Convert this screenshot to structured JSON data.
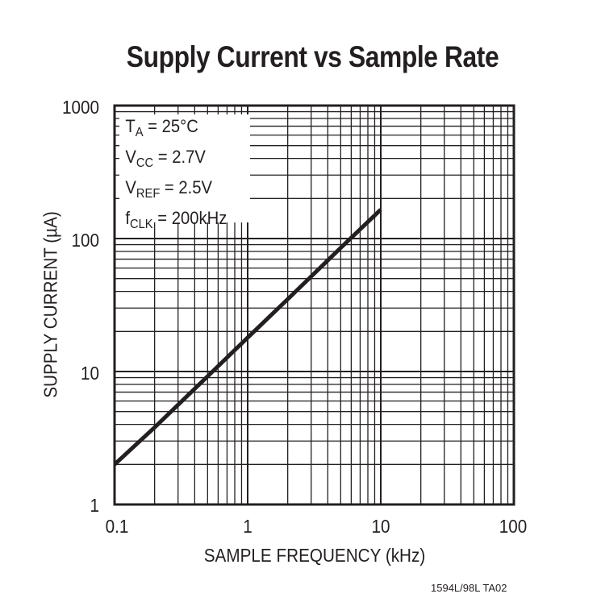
{
  "chart_data": {
    "type": "line",
    "title": "Supply Current vs Sample Rate",
    "xlabel": "SAMPLE FREQUENCY (kHz)",
    "ylabel": "SUPPLY CURRENT (µA)",
    "x_scale": "log",
    "y_scale": "log",
    "xlim": [
      0.1,
      100
    ],
    "ylim": [
      1,
      1000
    ],
    "x_ticks": [
      "0.1",
      "1",
      "10",
      "100"
    ],
    "y_ticks": [
      "1000",
      "100",
      "10",
      "1"
    ],
    "grid": true,
    "series": [
      {
        "name": "Supply Current",
        "x": [
          0.1,
          0.2,
          0.5,
          1,
          2,
          5,
          10
        ],
        "y": [
          2.0,
          3.8,
          9.2,
          18,
          35,
          85,
          165
        ]
      }
    ],
    "annotations": [
      {
        "text": "T_A = 25°C"
      },
      {
        "text": "V_CC = 2.7V"
      },
      {
        "text": "V_REF = 2.5V"
      },
      {
        "text": "f_CLK = 200kHz"
      }
    ]
  },
  "title": "Supply Current vs Sample Rate",
  "axes": {
    "xlabel": "SAMPLE FREQUENCY (kHz)",
    "ylabel": "SUPPLY CURRENT (µA)",
    "x_ticks": [
      "0.1",
      "1",
      "10",
      "100"
    ],
    "y_ticks": [
      "1000",
      "100",
      "10",
      "1"
    ]
  },
  "conditions": [
    {
      "main": "T",
      "sub": "A",
      "rest": " = 25°C"
    },
    {
      "main": "V",
      "sub": "CC",
      "rest": " = 2.7V"
    },
    {
      "main": "V",
      "sub": "REF",
      "rest": " = 2.5V"
    },
    {
      "main": "f",
      "sub": "CLK",
      "rest": " = 200kHz"
    }
  ],
  "footnote": "1594L/98L TA02",
  "colors": {
    "ink": "#231f20",
    "background": "#ffffff"
  }
}
